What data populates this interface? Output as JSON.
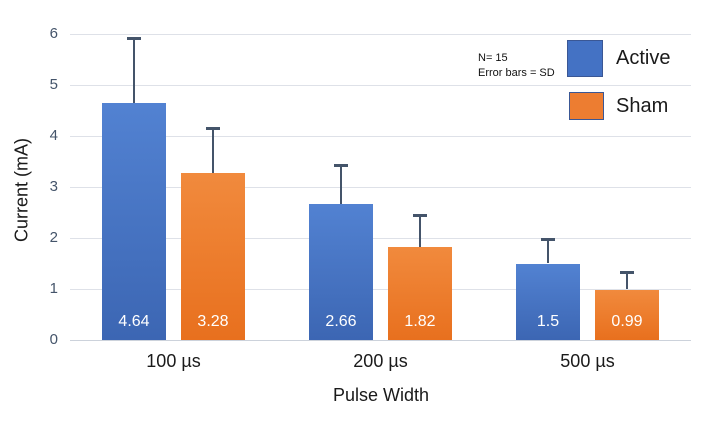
{
  "chart_data": {
    "type": "bar",
    "title": "",
    "xlabel": "Pulse Width",
    "ylabel": "Current (mA)",
    "categories": [
      "100 µs",
      "200 µs",
      "500 µs"
    ],
    "series": [
      {
        "name": "Active",
        "values": [
          4.64,
          2.66,
          1.5
        ],
        "sd": [
          1.28,
          0.77,
          0.48
        ],
        "color": "#4472C4",
        "gradient_top": "#5282D2",
        "gradient_bottom": "#3C66B3"
      },
      {
        "name": "Sham",
        "values": [
          3.28,
          1.82,
          0.99
        ],
        "sd": [
          0.88,
          0.64,
          0.34
        ],
        "color": "#ED7D31",
        "gradient_top": "#F18A3D",
        "gradient_bottom": "#E8701E"
      }
    ],
    "data_labels_shown": true,
    "error_bars": "SD, plus direction only",
    "ylim": [
      0,
      6
    ],
    "yticks": [
      0,
      1,
      2,
      3,
      4,
      5,
      6
    ],
    "grid": true,
    "legend_position": "top-right"
  },
  "annotation": {
    "line1": "N= 15",
    "line2": "Error bars = SD"
  },
  "legend": {
    "items": [
      {
        "label": "Active",
        "color": "#4472C4"
      },
      {
        "label": "Sham",
        "color": "#ED7D31"
      }
    ]
  },
  "colors": {
    "grid": "#dee1e8",
    "baseline": "#ccd2db",
    "error_bar": "#44546A",
    "tick_label": "#44546A",
    "axis_text": "#1a1a1a",
    "data_label": "#ffffff",
    "background": "#ffffff"
  }
}
